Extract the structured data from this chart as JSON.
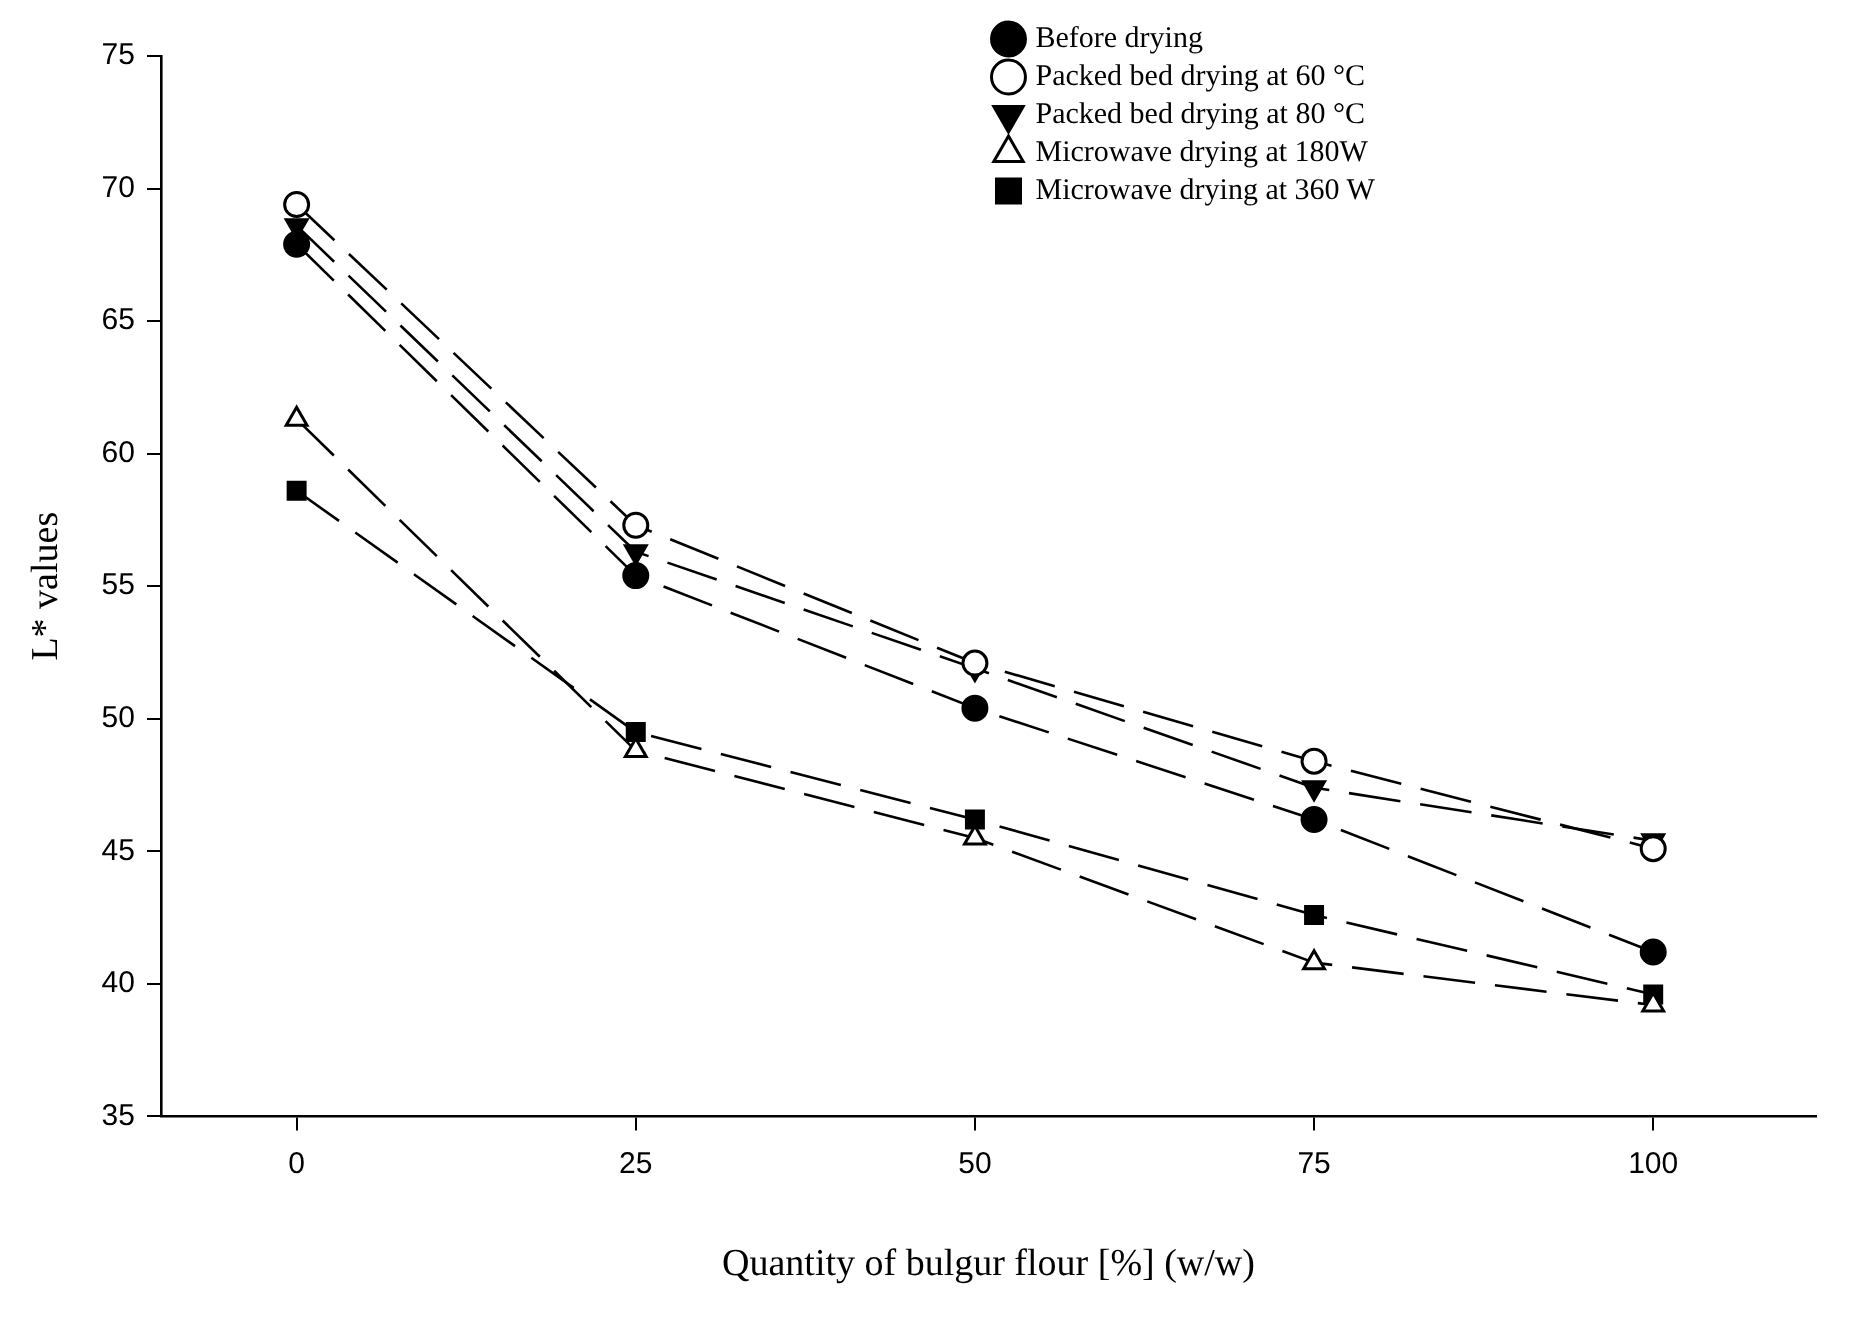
{
  "chart_data": {
    "type": "line",
    "xlabel": "Quantity of bulgur flour [%] (w/w)",
    "ylabel": "L* values",
    "x": [
      0,
      25,
      50,
      75,
      100
    ],
    "xlim": [
      -10,
      112
    ],
    "xticks": [
      0,
      25,
      50,
      75,
      100
    ],
    "ylim": [
      35,
      75
    ],
    "yticks": [
      35,
      40,
      45,
      50,
      55,
      60,
      65,
      70,
      75
    ],
    "grid": false,
    "legend": "top right",
    "line_style": "dashed",
    "series": [
      {
        "name": "Before drying",
        "color": "#000000",
        "marker": "circle",
        "values": [
          67.9,
          55.4,
          50.4,
          46.2,
          41.2
        ]
      },
      {
        "name": "Packed bed drying at 60 °C",
        "color": "#000000",
        "marker": "circle-open",
        "values": [
          69.4,
          57.3,
          52.1,
          48.4,
          45.1
        ]
      },
      {
        "name": "Packed bed drying at 80 °C",
        "color": "#000000",
        "marker": "triangle-down",
        "values": [
          68.6,
          56.3,
          51.9,
          47.4,
          45.4
        ]
      },
      {
        "name": "Microwave drying at 180W",
        "color": "#000000",
        "marker": "triangle-open",
        "values": [
          61.3,
          48.8,
          45.5,
          40.8,
          39.2
        ]
      },
      {
        "name": "Microwave drying at 360 W",
        "color": "#000000",
        "marker": "square",
        "values": [
          58.6,
          49.5,
          46.2,
          42.6,
          39.6
        ]
      }
    ]
  }
}
